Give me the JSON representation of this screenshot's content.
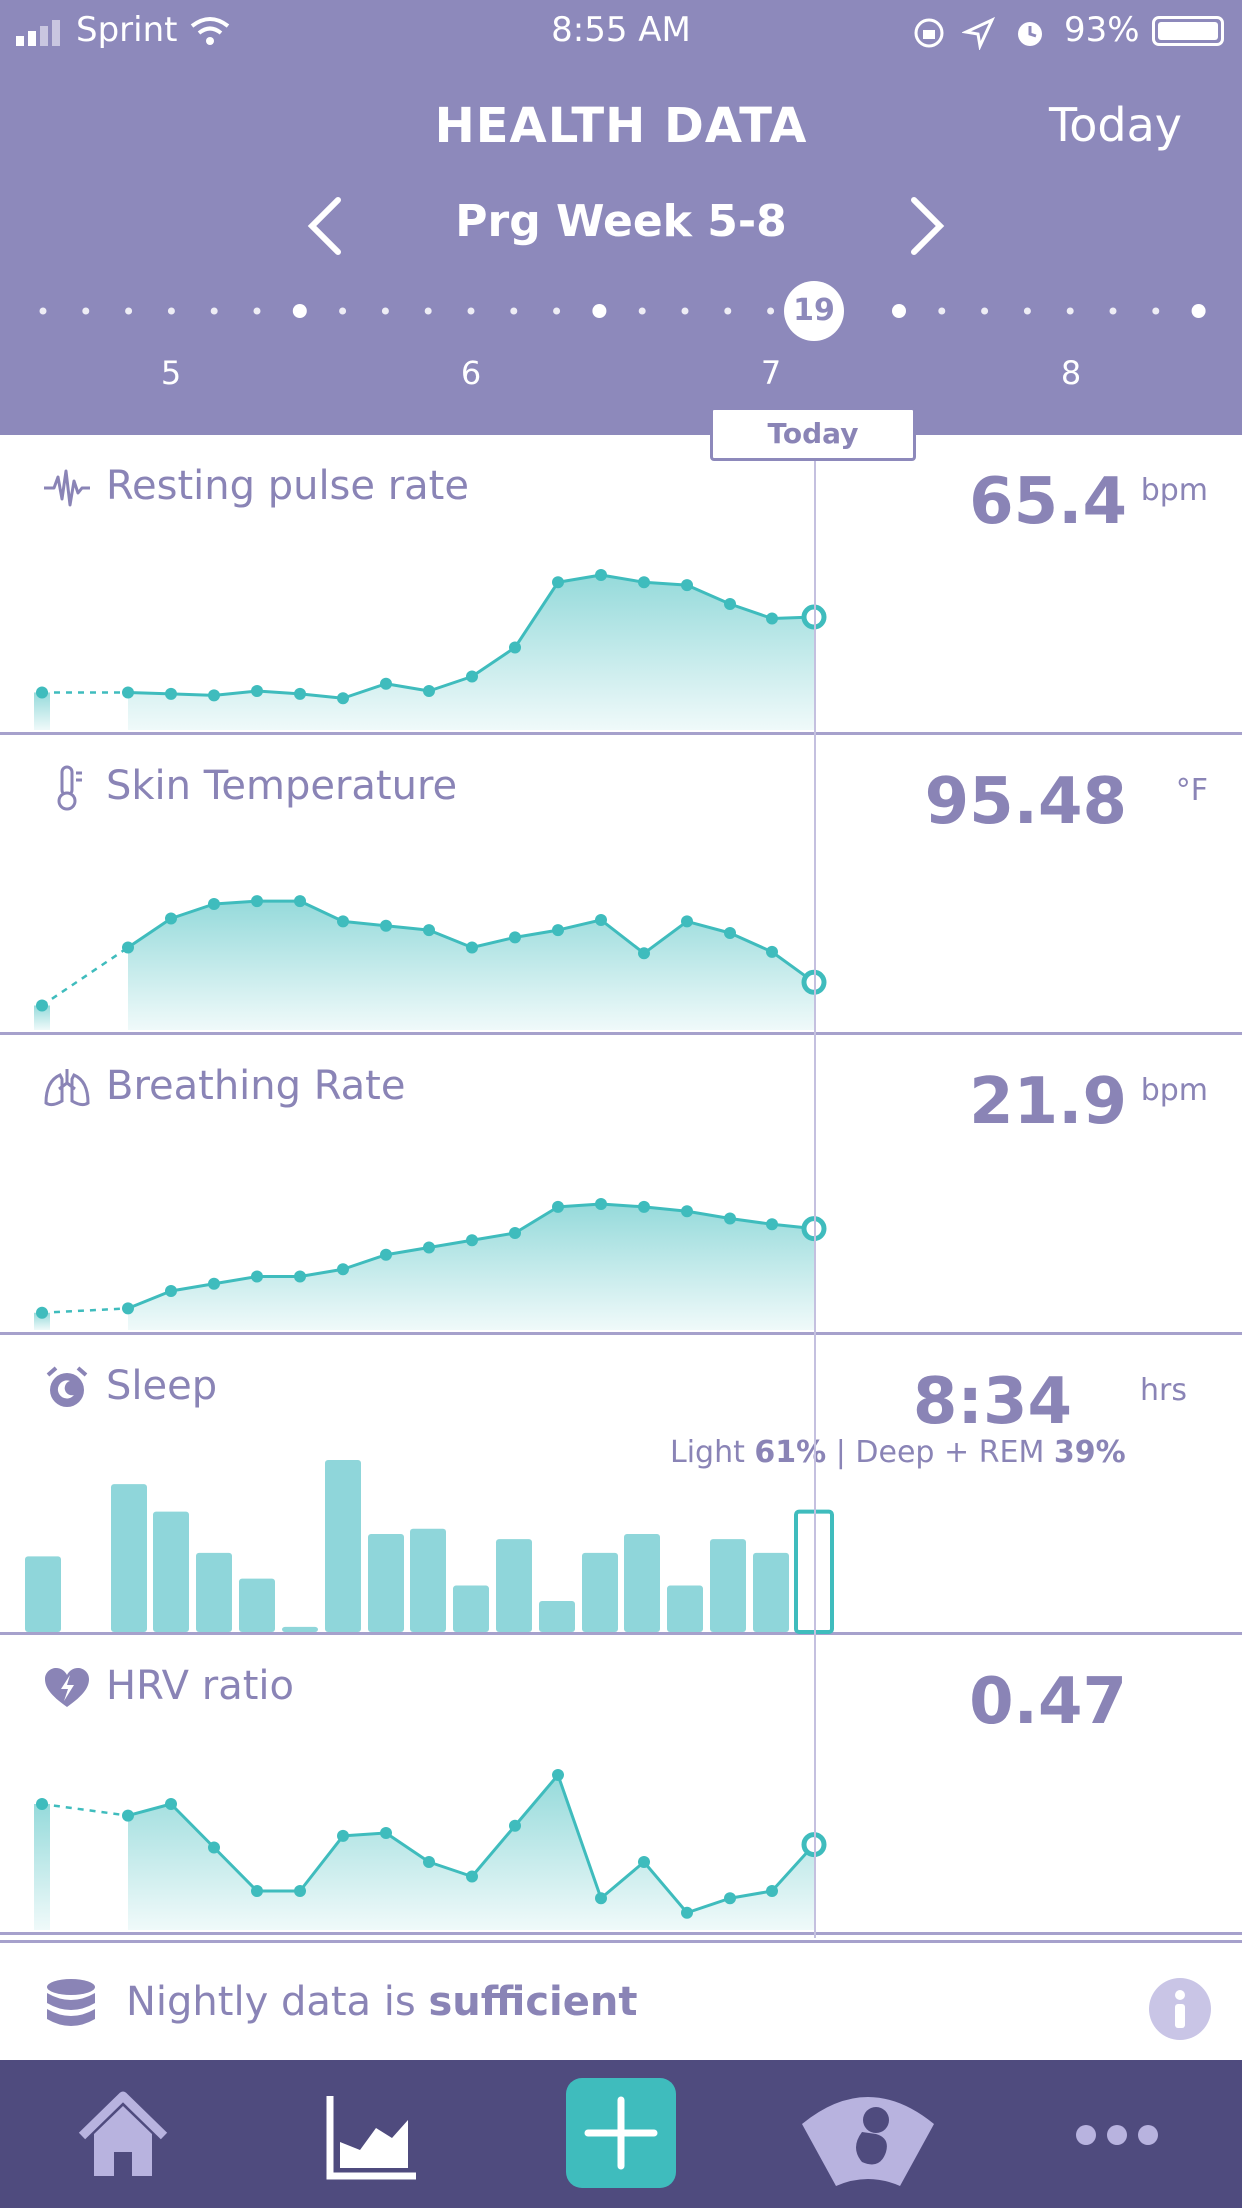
{
  "status_bar": {
    "carrier": "Sprint",
    "time": "8:55 AM",
    "battery": "93%"
  },
  "header": {
    "title": "HEALTH DATA",
    "today_link": "Today",
    "week_label": "Prg Week 5-8",
    "selected_day": "19",
    "week_numbers": [
      "5",
      "6",
      "7",
      "8"
    ]
  },
  "today_tag": "Today",
  "metrics": [
    {
      "id": "pulse",
      "label": "Resting pulse rate",
      "value": "65.4",
      "unit": "bpm",
      "icon": "pulse-wave-icon",
      "series": [
        0.19,
        0.19,
        0.18,
        0.17,
        0.2,
        0.18,
        0.15,
        0.25,
        0.2,
        0.3,
        0.5,
        0.95,
        1.0,
        0.95,
        0.93,
        0.8,
        0.7,
        0.71
      ]
    },
    {
      "id": "skin-temp",
      "label": "Skin Temperature",
      "value": "95.48",
      "unit": "°F",
      "icon": "thermometer-icon",
      "series": [
        0.1,
        0.5,
        0.7,
        0.8,
        0.82,
        0.82,
        0.68,
        0.65,
        0.62,
        0.5,
        0.57,
        0.62,
        0.69,
        0.46,
        0.68,
        0.6,
        0.47,
        0.26
      ]
    },
    {
      "id": "breathing",
      "label": "Breathing Rate",
      "value": "21.9",
      "unit": "bpm",
      "icon": "lungs-icon",
      "series": [
        0.05,
        0.08,
        0.2,
        0.25,
        0.3,
        0.3,
        0.35,
        0.45,
        0.5,
        0.55,
        0.6,
        0.78,
        0.8,
        0.78,
        0.75,
        0.7,
        0.66,
        0.63
      ]
    },
    {
      "id": "sleep",
      "label": "Sleep",
      "value": "8:34",
      "unit": "hrs",
      "icon": "alarm-clock-icon",
      "breakdown": {
        "light_label": "Light",
        "light": "61%",
        "separator": " | ",
        "deep_label": "Deep + REM",
        "deep": "39%"
      },
      "bars": [
        0.44,
        0,
        0.86,
        0.7,
        0.46,
        0.31,
        0.03,
        1.0,
        0.57,
        0.6,
        0.27,
        0.54,
        0.18,
        0.46,
        0.57,
        0.27,
        0.54,
        0.46,
        0.7
      ]
    },
    {
      "id": "hrv",
      "label": "HRV ratio",
      "value": "0.47",
      "unit": "",
      "icon": "heart-bolt-icon",
      "series": [
        0.8,
        0.72,
        0.8,
        0.5,
        0.2,
        0.2,
        0.58,
        0.6,
        0.4,
        0.3,
        0.65,
        1.0,
        0.15,
        0.4,
        0.05,
        0.15,
        0.2,
        0.52
      ]
    }
  ],
  "nightly": {
    "prefix": "Nightly data is ",
    "status": "sufficient"
  },
  "colors": {
    "header": "#8d89bb",
    "accent": "#3fbcbd",
    "text": "#8a84b6",
    "tabbar": "#4f4b7e"
  },
  "tabs": [
    "home-icon",
    "chart-icon",
    "add-icon",
    "baby-ultrasound-icon",
    "more-icon"
  ]
}
